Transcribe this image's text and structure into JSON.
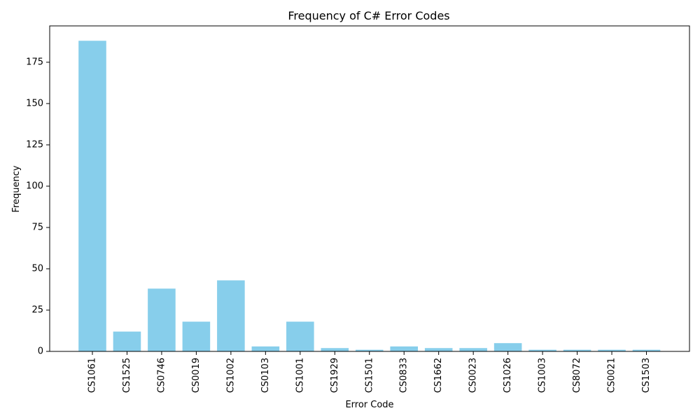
{
  "chart_data": {
    "type": "bar",
    "title": "Frequency of C# Error Codes",
    "xlabel": "Error Code",
    "ylabel": "Frequency",
    "categories": [
      "CS1061",
      "CS1525",
      "CS0746",
      "CS0019",
      "CS1002",
      "CS0103",
      "CS1001",
      "CS1929",
      "CS1501",
      "CS0833",
      "CS1662",
      "CS0023",
      "CS1026",
      "CS1003",
      "CS8072",
      "CS0021",
      "CS1503"
    ],
    "values": [
      188,
      12,
      38,
      18,
      43,
      3,
      18,
      2,
      1,
      3,
      2,
      2,
      5,
      1,
      1,
      1,
      1
    ],
    "ylim": [
      0,
      197
    ],
    "yticks": [
      0,
      25,
      50,
      75,
      100,
      125,
      150,
      175
    ],
    "bar_color": "#87ceeb",
    "grid": false
  }
}
